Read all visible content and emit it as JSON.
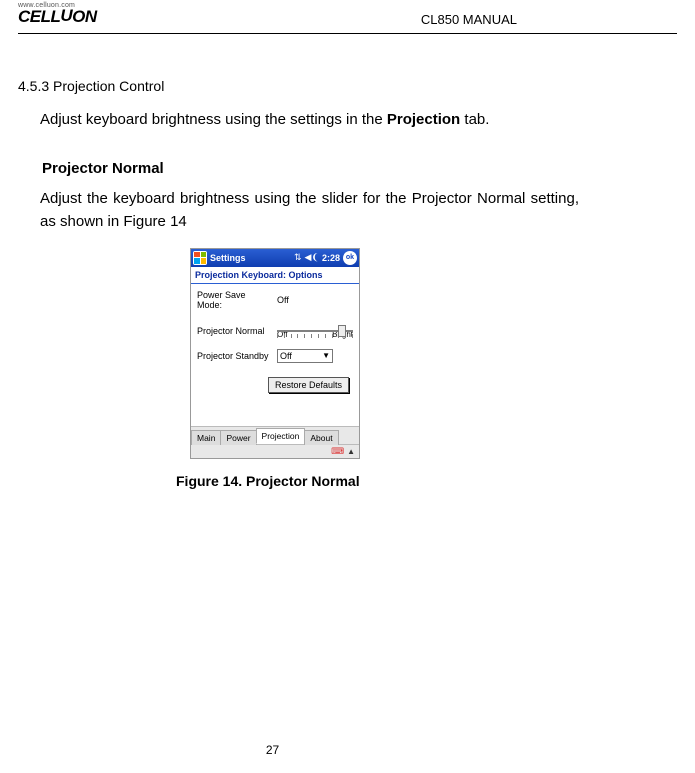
{
  "header": {
    "url": "www.celluon.com",
    "logo_text": "CELLUON",
    "doc_title": "CL850 MANUAL"
  },
  "section": {
    "number_title": "4.5.3    Projection Control",
    "intro_pre": "Adjust keyboard brightness using the settings in the ",
    "intro_bold": "Projection",
    "intro_post": " tab.",
    "subhead": "Projector Normal",
    "desc": "Adjust the keyboard brightness using the slider for the Projector Normal setting, as shown in Figure 14"
  },
  "screenshot": {
    "taskbar": {
      "title": "Settings",
      "time": "2:28",
      "ok": "ok"
    },
    "subtitle": "Projection Keyboard: Options",
    "rows": {
      "power_save": {
        "label": "Power Save Mode:",
        "value": "Off"
      },
      "proj_normal": {
        "label": "Projector Normal"
      },
      "slider": {
        "left": "Off",
        "right": "Bright",
        "thumb_left_pct": 86,
        "tick_count": 12
      },
      "proj_standby": {
        "label": "Projector Standby",
        "value": "Off"
      },
      "restore": {
        "label": "Restore Defaults"
      }
    },
    "tabs": [
      "Main",
      "Power",
      "Projection",
      "About"
    ],
    "active_tab_index": 2
  },
  "figure_caption": "Figure 14. Projector Normal",
  "page_number": "27",
  "colors": {
    "taskbar_top": "#2a5fd3",
    "taskbar_bottom": "#0f3db0",
    "subtitle_text": "#0b2b9d"
  }
}
